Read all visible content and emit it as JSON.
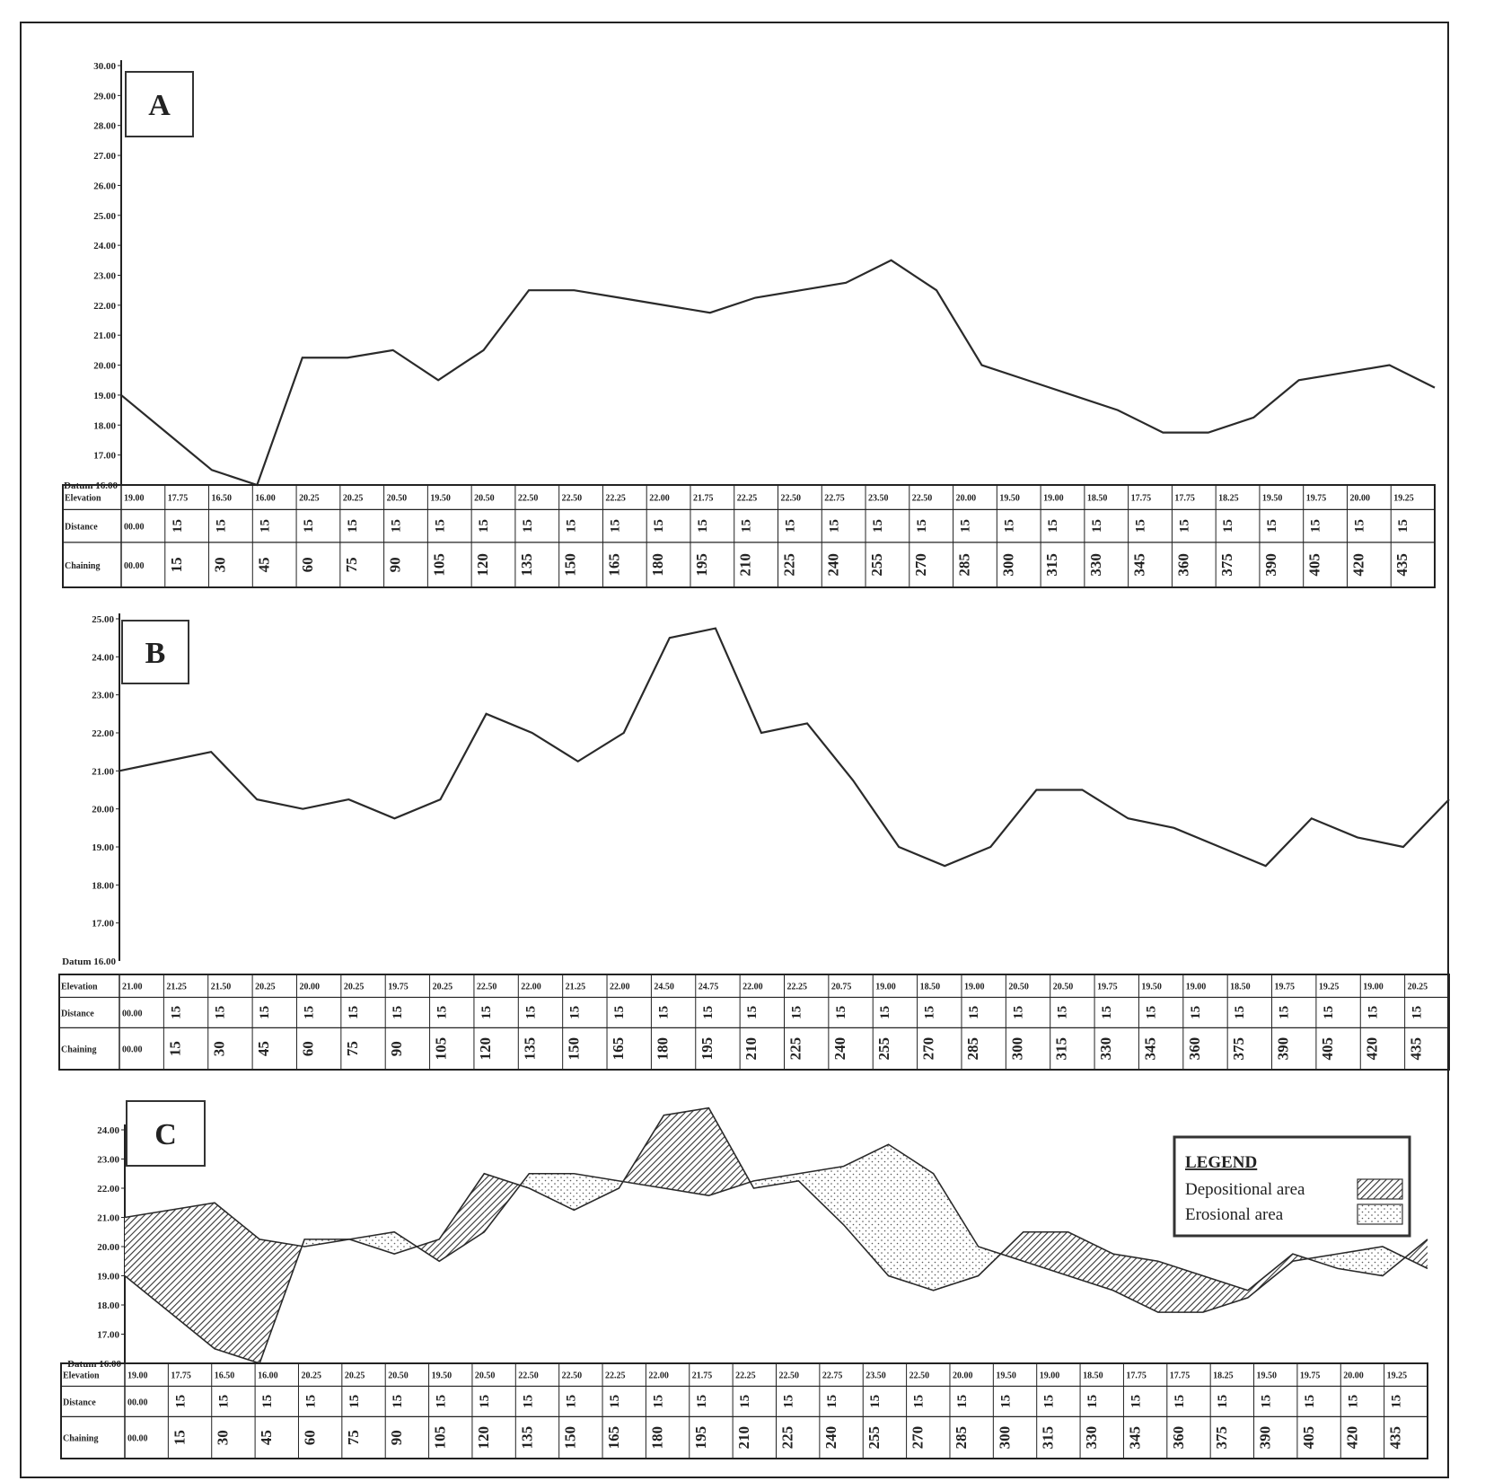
{
  "chart_data": [
    {
      "type": "line",
      "panel": "A",
      "yticks": [
        "30.00",
        "29.00",
        "28.00",
        "27.00",
        "26.00",
        "25.00",
        "24.00",
        "23.00",
        "22.00",
        "21.00",
        "20.00",
        "19.00",
        "18.00",
        "17.00"
      ],
      "datum_label": "Datum 16.00",
      "ylim": [
        16,
        30
      ],
      "x": [
        0,
        15,
        30,
        45,
        60,
        75,
        90,
        105,
        120,
        135,
        150,
        165,
        180,
        195,
        210,
        225,
        240,
        255,
        270,
        285,
        300,
        315,
        330,
        345,
        360,
        375,
        390,
        405,
        420,
        435
      ],
      "values": [
        19.0,
        17.75,
        16.5,
        16.0,
        20.25,
        20.25,
        20.5,
        19.5,
        20.5,
        22.5,
        22.5,
        22.25,
        22.0,
        21.75,
        22.25,
        22.5,
        22.75,
        23.5,
        22.5,
        20.0,
        19.5,
        19.0,
        18.5,
        17.75,
        17.75,
        18.25,
        19.5,
        19.75,
        20.0,
        19.25
      ],
      "table": {
        "row_labels": [
          "Elevation",
          "Distance",
          "Chaining"
        ],
        "elevation": [
          "19.00",
          "17.75",
          "16.50",
          "16.00",
          "20.25",
          "20.25",
          "20.50",
          "19.50",
          "20.50",
          "22.50",
          "22.50",
          "22.25",
          "22.00",
          "21.75",
          "22.25",
          "22.50",
          "22.75",
          "23.50",
          "22.50",
          "20.00",
          "19.50",
          "19.00",
          "18.50",
          "17.75",
          "17.75",
          "18.25",
          "19.50",
          "19.75",
          "20.00",
          "19.25"
        ],
        "distance": [
          "00.00",
          "15",
          "15",
          "15",
          "15",
          "15",
          "15",
          "15",
          "15",
          "15",
          "15",
          "15",
          "15",
          "15",
          "15",
          "15",
          "15",
          "15",
          "15",
          "15",
          "15",
          "15",
          "15",
          "15",
          "15",
          "15",
          "15",
          "15",
          "15",
          "15"
        ],
        "chaining": [
          "00.00",
          "15",
          "30",
          "45",
          "60",
          "75",
          "90",
          "105",
          "120",
          "135",
          "150",
          "165",
          "180",
          "195",
          "210",
          "225",
          "240",
          "255",
          "270",
          "285",
          "300",
          "315",
          "330",
          "345",
          "360",
          "375",
          "390",
          "405",
          "420",
          "435"
        ]
      }
    },
    {
      "type": "line",
      "panel": "B",
      "yticks": [
        "25.00",
        "24.00",
        "23.00",
        "22.00",
        "21.00",
        "20.00",
        "19.00",
        "18.00",
        "17.00"
      ],
      "datum_label": "Datum 16.00",
      "ylim": [
        16,
        25
      ],
      "x": [
        0,
        15,
        30,
        45,
        60,
        75,
        90,
        105,
        120,
        135,
        150,
        165,
        180,
        195,
        210,
        225,
        240,
        255,
        270,
        285,
        300,
        315,
        330,
        345,
        360,
        375,
        390,
        405,
        420,
        435
      ],
      "values": [
        21.0,
        21.25,
        21.5,
        20.25,
        20.0,
        20.25,
        19.75,
        20.25,
        22.5,
        22.0,
        21.25,
        22.0,
        24.5,
        24.75,
        22.0,
        22.25,
        20.75,
        19.0,
        18.5,
        19.0,
        20.5,
        20.5,
        19.75,
        19.5,
        19.0,
        18.5,
        19.75,
        19.25,
        19.0,
        20.25
      ],
      "table": {
        "row_labels": [
          "Elevation",
          "Distance",
          "Chaining"
        ],
        "elevation": [
          "21.00",
          "21.25",
          "21.50",
          "20.25",
          "20.00",
          "20.25",
          "19.75",
          "20.25",
          "22.50",
          "22.00",
          "21.25",
          "22.00",
          "24.50",
          "24.75",
          "22.00",
          "22.25",
          "20.75",
          "19.00",
          "18.50",
          "19.00",
          "20.50",
          "20.50",
          "19.75",
          "19.50",
          "19.00",
          "18.50",
          "19.75",
          "19.25",
          "19.00",
          "20.25"
        ],
        "distance": [
          "00.00",
          "15",
          "15",
          "15",
          "15",
          "15",
          "15",
          "15",
          "15",
          "15",
          "15",
          "15",
          "15",
          "15",
          "15",
          "15",
          "15",
          "15",
          "15",
          "15",
          "15",
          "15",
          "15",
          "15",
          "15",
          "15",
          "15",
          "15",
          "15",
          "15"
        ],
        "chaining": [
          "00.00",
          "15",
          "30",
          "45",
          "60",
          "75",
          "90",
          "105",
          "120",
          "135",
          "150",
          "165",
          "180",
          "195",
          "210",
          "225",
          "240",
          "255",
          "270",
          "285",
          "300",
          "315",
          "330",
          "345",
          "360",
          "375",
          "390",
          "405",
          "420",
          "435"
        ]
      }
    },
    {
      "type": "area",
      "panel": "C",
      "yticks": [
        "24.00",
        "23.00",
        "22.00",
        "21.00",
        "20.00",
        "19.00",
        "18.00",
        "17.00"
      ],
      "datum_label": "Datum 16.00",
      "ylim": [
        16,
        24.8
      ],
      "x": [
        0,
        15,
        30,
        45,
        60,
        75,
        90,
        105,
        120,
        135,
        150,
        165,
        180,
        195,
        210,
        225,
        240,
        255,
        270,
        285,
        300,
        315,
        330,
        345,
        360,
        375,
        390,
        405,
        420,
        435
      ],
      "series": [
        {
          "name": "A",
          "values": [
            19.0,
            17.75,
            16.5,
            16.0,
            20.25,
            20.25,
            20.5,
            19.5,
            20.5,
            22.5,
            22.5,
            22.25,
            22.0,
            21.75,
            22.25,
            22.5,
            22.75,
            23.5,
            22.5,
            20.0,
            19.5,
            19.0,
            18.5,
            17.75,
            17.75,
            18.25,
            19.5,
            19.75,
            20.0,
            19.25
          ]
        },
        {
          "name": "B",
          "values": [
            21.0,
            21.25,
            21.5,
            20.25,
            20.0,
            20.25,
            19.75,
            20.25,
            22.5,
            22.0,
            21.25,
            22.0,
            24.5,
            24.75,
            22.0,
            22.25,
            20.75,
            19.0,
            18.5,
            19.0,
            20.5,
            20.5,
            19.75,
            19.5,
            19.0,
            18.5,
            19.75,
            19.25,
            19.0,
            20.25
          ]
        }
      ],
      "legend": {
        "title": "LEGEND",
        "items": [
          {
            "label": "Depositional area",
            "fill": "hatch"
          },
          {
            "label": "Erosional area",
            "fill": "dots"
          }
        ],
        "placement": "top-right"
      },
      "table": {
        "row_labels": [
          "Elevation",
          "Distance",
          "Chaining"
        ],
        "elevation": [
          "19.00",
          "17.75",
          "16.50",
          "16.00",
          "20.25",
          "20.25",
          "20.50",
          "19.50",
          "20.50",
          "22.50",
          "22.50",
          "22.25",
          "22.00",
          "21.75",
          "22.25",
          "22.50",
          "22.75",
          "23.50",
          "22.50",
          "20.00",
          "19.50",
          "19.00",
          "18.50",
          "17.75",
          "17.75",
          "18.25",
          "19.50",
          "19.75",
          "20.00",
          "19.25"
        ],
        "distance": [
          "00.00",
          "15",
          "15",
          "15",
          "15",
          "15",
          "15",
          "15",
          "15",
          "15",
          "15",
          "15",
          "15",
          "15",
          "15",
          "15",
          "15",
          "15",
          "15",
          "15",
          "15",
          "15",
          "15",
          "15",
          "15",
          "15",
          "15",
          "15",
          "15",
          "15"
        ],
        "chaining": [
          "00.00",
          "15",
          "30",
          "45",
          "60",
          "75",
          "90",
          "105",
          "120",
          "135",
          "150",
          "165",
          "180",
          "195",
          "210",
          "225",
          "240",
          "255",
          "270",
          "285",
          "300",
          "315",
          "330",
          "345",
          "360",
          "375",
          "390",
          "405",
          "420",
          "435"
        ]
      }
    }
  ],
  "colors": {
    "line": "#2a2a2a",
    "grid": "#222222",
    "background": "#ffffff"
  }
}
